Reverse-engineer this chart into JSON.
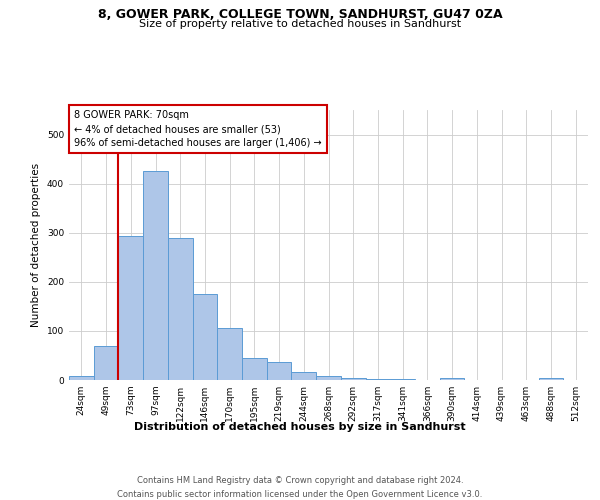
{
  "title1": "8, GOWER PARK, COLLEGE TOWN, SANDHURST, GU47 0ZA",
  "title2": "Size of property relative to detached houses in Sandhurst",
  "xlabel": "Distribution of detached houses by size in Sandhurst",
  "ylabel": "Number of detached properties",
  "categories": [
    "24sqm",
    "49sqm",
    "73sqm",
    "97sqm",
    "122sqm",
    "146sqm",
    "170sqm",
    "195sqm",
    "219sqm",
    "244sqm",
    "268sqm",
    "292sqm",
    "317sqm",
    "341sqm",
    "366sqm",
    "390sqm",
    "414sqm",
    "439sqm",
    "463sqm",
    "488sqm",
    "512sqm"
  ],
  "values": [
    8,
    70,
    293,
    425,
    290,
    175,
    105,
    44,
    37,
    17,
    9,
    5,
    3,
    2,
    0,
    4,
    0,
    0,
    0,
    5,
    0
  ],
  "bar_color": "#aec6e8",
  "bar_edge_color": "#5b9bd5",
  "property_line_index": 1.5,
  "property_line_color": "#cc0000",
  "annotation_line1": "8 GOWER PARK: 70sqm",
  "annotation_line2": "← 4% of detached houses are smaller (53)",
  "annotation_line3": "96% of semi-detached houses are larger (1,406) →",
  "annotation_box_facecolor": "#ffffff",
  "annotation_box_edgecolor": "#cc0000",
  "ylim_max": 550,
  "footer1": "Contains HM Land Registry data © Crown copyright and database right 2024.",
  "footer2": "Contains public sector information licensed under the Open Government Licence v3.0.",
  "bg_color": "#ffffff",
  "grid_color": "#cccccc",
  "title1_fontsize": 9,
  "title2_fontsize": 8,
  "ylabel_fontsize": 7.5,
  "xlabel_fontsize": 8,
  "tick_fontsize": 6.5,
  "annotation_fontsize": 7,
  "footer_fontsize": 6
}
